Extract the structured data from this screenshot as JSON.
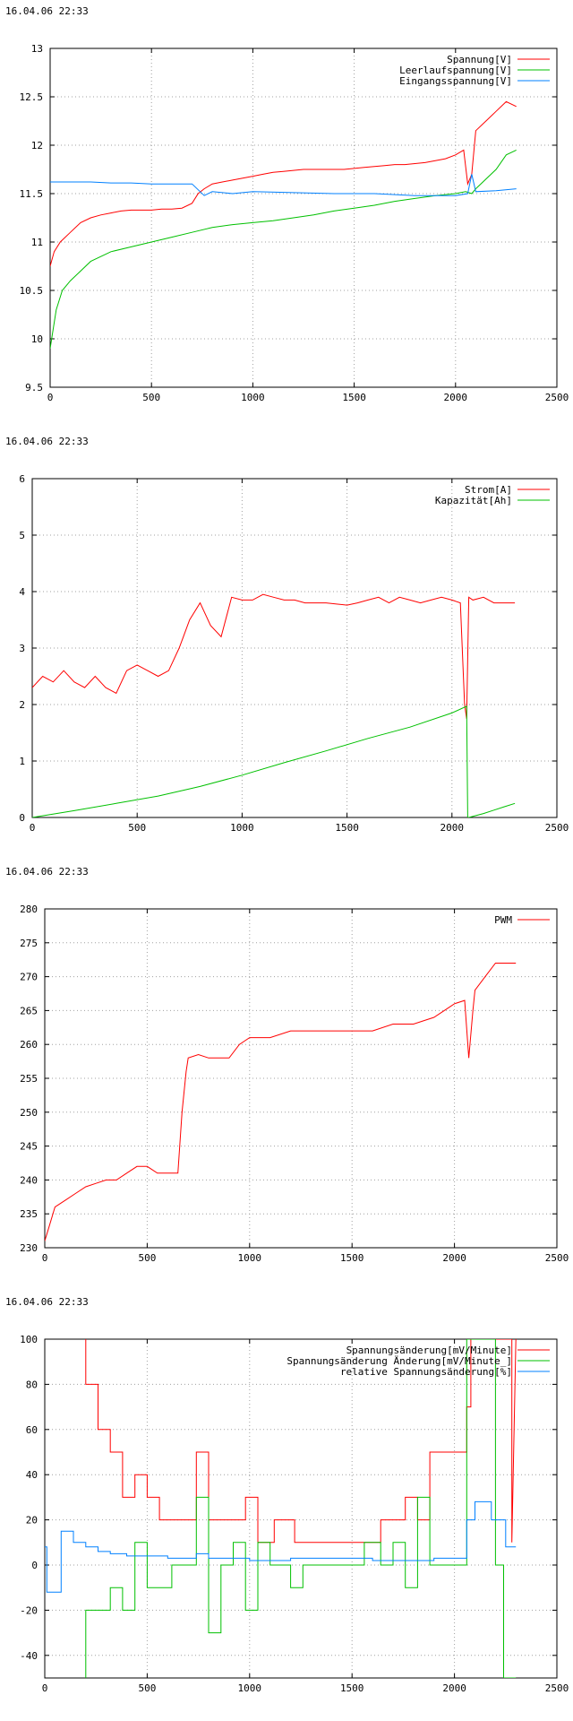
{
  "chart_data": [
    {
      "type": "line",
      "timestamp": "16.04.06 22:33",
      "xlim": [
        0,
        2500
      ],
      "ylim": [
        9.5,
        13
      ],
      "xticks": [
        0,
        500,
        1000,
        1500,
        2000,
        2500
      ],
      "yticks": [
        9.5,
        10,
        10.5,
        11,
        11.5,
        12,
        12.5,
        13
      ],
      "grid": true,
      "legend": "top-right",
      "series": [
        {
          "name": "Spannung[V]",
          "color": "#ff0000",
          "x": [
            0,
            20,
            50,
            100,
            150,
            200,
            250,
            300,
            350,
            400,
            450,
            500,
            550,
            600,
            650,
            700,
            730,
            760,
            800,
            850,
            900,
            950,
            1000,
            1050,
            1100,
            1150,
            1200,
            1250,
            1300,
            1350,
            1400,
            1450,
            1500,
            1550,
            1600,
            1650,
            1700,
            1750,
            1800,
            1850,
            1900,
            1950,
            2000,
            2040,
            2060,
            2080,
            2100,
            2150,
            2200,
            2250,
            2300
          ],
          "y": [
            10.75,
            10.9,
            11.0,
            11.1,
            11.2,
            11.25,
            11.28,
            11.3,
            11.32,
            11.33,
            11.33,
            11.33,
            11.34,
            11.34,
            11.35,
            11.4,
            11.5,
            11.55,
            11.6,
            11.62,
            11.64,
            11.66,
            11.68,
            11.7,
            11.72,
            11.73,
            11.74,
            11.75,
            11.75,
            11.75,
            11.75,
            11.75,
            11.76,
            11.77,
            11.78,
            11.79,
            11.8,
            11.8,
            11.81,
            11.82,
            11.84,
            11.86,
            11.9,
            11.95,
            11.6,
            11.7,
            12.15,
            12.25,
            12.35,
            12.45,
            12.4
          ]
        },
        {
          "name": "Leerlaufspannung[V]",
          "color": "#00c000",
          "x": [
            0,
            30,
            60,
            100,
            150,
            200,
            300,
            400,
            500,
            600,
            700,
            800,
            900,
            1000,
            1100,
            1200,
            1300,
            1400,
            1500,
            1600,
            1700,
            1800,
            1900,
            2000,
            2050,
            2080,
            2100,
            2150,
            2200,
            2250,
            2300
          ],
          "y": [
            9.9,
            10.3,
            10.5,
            10.6,
            10.7,
            10.8,
            10.9,
            10.95,
            11.0,
            11.05,
            11.1,
            11.15,
            11.18,
            11.2,
            11.22,
            11.25,
            11.28,
            11.32,
            11.35,
            11.38,
            11.42,
            11.45,
            11.48,
            11.5,
            11.52,
            11.5,
            11.55,
            11.65,
            11.75,
            11.9,
            11.95
          ]
        },
        {
          "name": "Eingangsspannung[V]",
          "color": "#0080ff",
          "x": [
            0,
            100,
            200,
            300,
            400,
            500,
            600,
            700,
            760,
            800,
            900,
            1000,
            1200,
            1400,
            1600,
            1800,
            2000,
            2060,
            2080,
            2100,
            2200,
            2300
          ],
          "y": [
            11.62,
            11.62,
            11.62,
            11.61,
            11.61,
            11.6,
            11.6,
            11.6,
            11.48,
            11.52,
            11.5,
            11.52,
            11.51,
            11.5,
            11.5,
            11.48,
            11.48,
            11.5,
            11.7,
            11.52,
            11.53,
            11.55
          ]
        }
      ]
    },
    {
      "type": "line",
      "timestamp": "16.04.06 22:33",
      "xlim": [
        0,
        2500
      ],
      "ylim": [
        0,
        6
      ],
      "xticks": [
        0,
        500,
        1000,
        1500,
        2000,
        2500
      ],
      "yticks": [
        0,
        1,
        2,
        3,
        4,
        5,
        6
      ],
      "grid": true,
      "legend": "top-right",
      "series": [
        {
          "name": "Strom[A]",
          "color": "#ff0000",
          "x": [
            0,
            50,
            100,
            150,
            200,
            250,
            300,
            350,
            400,
            450,
            500,
            550,
            600,
            650,
            700,
            720,
            750,
            800,
            850,
            900,
            950,
            1000,
            1050,
            1100,
            1150,
            1200,
            1250,
            1300,
            1350,
            1400,
            1450,
            1500,
            1550,
            1600,
            1650,
            1700,
            1750,
            1800,
            1850,
            1900,
            1950,
            2000,
            2040,
            2060,
            2070,
            2080,
            2100,
            2150,
            2200,
            2250,
            2300
          ],
          "y": [
            2.3,
            2.5,
            2.4,
            2.6,
            2.4,
            2.3,
            2.5,
            2.3,
            2.2,
            2.6,
            2.7,
            2.6,
            2.5,
            2.6,
            3.0,
            3.2,
            3.5,
            3.8,
            3.4,
            3.2,
            3.9,
            3.85,
            3.85,
            3.95,
            3.9,
            3.85,
            3.85,
            3.8,
            3.8,
            3.8,
            3.78,
            3.76,
            3.8,
            3.85,
            3.9,
            3.8,
            3.9,
            3.85,
            3.8,
            3.85,
            3.9,
            3.85,
            3.8,
            2.0,
            1.75,
            3.9,
            3.85,
            3.9,
            3.8,
            3.8,
            3.8
          ]
        },
        {
          "name": "Kapazität[Ah]",
          "color": "#00c000",
          "x": [
            0,
            200,
            400,
            600,
            800,
            1000,
            1200,
            1400,
            1600,
            1800,
            2000,
            2070,
            2075,
            2080,
            2150,
            2200,
            2250,
            2300
          ],
          "y": [
            0,
            0.12,
            0.25,
            0.38,
            0.55,
            0.75,
            0.97,
            1.18,
            1.4,
            1.6,
            1.85,
            1.97,
            0.0,
            0.0,
            0.07,
            0.13,
            0.19,
            0.25
          ]
        }
      ]
    },
    {
      "type": "line",
      "timestamp": "16.04.06 22:33",
      "xlim": [
        0,
        2500
      ],
      "ylim": [
        230,
        280
      ],
      "xticks": [
        0,
        500,
        1000,
        1500,
        2000,
        2500
      ],
      "yticks": [
        230,
        235,
        240,
        245,
        250,
        255,
        260,
        265,
        270,
        275,
        280
      ],
      "grid": true,
      "legend": "top-right",
      "series": [
        {
          "name": "PWM",
          "color": "#ff0000",
          "x": [
            0,
            20,
            50,
            100,
            150,
            200,
            250,
            300,
            350,
            400,
            450,
            500,
            550,
            600,
            650,
            670,
            690,
            700,
            750,
            800,
            850,
            900,
            950,
            1000,
            1100,
            1200,
            1300,
            1400,
            1500,
            1600,
            1700,
            1800,
            1900,
            1950,
            2000,
            2050,
            2070,
            2090,
            2100,
            2150,
            2200,
            2250,
            2300
          ],
          "y": [
            231,
            233,
            236,
            237,
            238,
            239,
            239.5,
            240,
            240,
            241,
            242,
            242,
            241,
            241,
            241,
            250,
            256,
            258,
            258.5,
            258,
            258,
            258,
            260,
            261,
            261,
            262,
            262,
            262,
            262,
            262,
            263,
            263,
            264,
            265,
            266,
            266.5,
            258,
            265,
            268,
            270,
            272,
            272,
            272
          ]
        }
      ]
    },
    {
      "type": "line",
      "timestamp": "16.04.06 22:33",
      "xlim": [
        0,
        2500
      ],
      "ylim": [
        -50,
        100
      ],
      "xticks": [
        0,
        500,
        1000,
        1500,
        2000,
        2500
      ],
      "yticks": [
        -40,
        -20,
        0,
        20,
        40,
        60,
        80,
        100
      ],
      "grid": true,
      "legend": "top-right",
      "series": [
        {
          "name": "Spannungsänderung[mV/Minute]",
          "color": "#ff0000",
          "x": [
            200,
            200,
            260,
            260,
            320,
            320,
            380,
            380,
            440,
            440,
            500,
            500,
            560,
            560,
            620,
            620,
            740,
            740,
            800,
            800,
            860,
            860,
            980,
            980,
            1040,
            1040,
            1120,
            1120,
            1220,
            1220,
            1300,
            1300,
            1400,
            1400,
            1500,
            1500,
            1560,
            1560,
            1640,
            1640,
            1700,
            1700,
            1760,
            1760,
            1820,
            1820,
            1880,
            1880,
            1940,
            1940,
            2000,
            2000,
            2060,
            2060,
            2080,
            2080,
            2100,
            2100,
            2280,
            2280,
            2300
          ],
          "y": [
            100,
            80,
            80,
            60,
            60,
            50,
            50,
            30,
            30,
            40,
            40,
            30,
            30,
            20,
            20,
            20,
            20,
            50,
            50,
            20,
            20,
            20,
            20,
            30,
            30,
            10,
            10,
            20,
            20,
            10,
            10,
            10,
            10,
            10,
            10,
            10,
            10,
            10,
            10,
            20,
            20,
            20,
            20,
            30,
            30,
            20,
            20,
            50,
            50,
            50,
            50,
            50,
            50,
            70,
            70,
            100,
            100,
            100,
            100,
            10,
            100
          ]
        },
        {
          "name": "Spannungsänderung Änderung[mV/Minute_]",
          "color": "#00c000",
          "x": [
            200,
            200,
            300,
            300,
            320,
            320,
            380,
            380,
            440,
            440,
            480,
            480,
            500,
            500,
            560,
            560,
            620,
            620,
            740,
            740,
            800,
            800,
            860,
            860,
            920,
            920,
            980,
            980,
            1040,
            1040,
            1100,
            1100,
            1200,
            1200,
            1260,
            1260,
            1400,
            1400,
            1500,
            1500,
            1560,
            1560,
            1640,
            1640,
            1700,
            1700,
            1760,
            1760,
            1820,
            1820,
            1880,
            1880,
            1940,
            1940,
            2000,
            2000,
            2060,
            2060,
            2080,
            2080,
            2200,
            2200,
            2240,
            2240,
            2300
          ],
          "y": [
            -50,
            -20,
            -20,
            -20,
            -20,
            -10,
            -10,
            -20,
            -20,
            10,
            10,
            10,
            10,
            -10,
            -10,
            -10,
            -10,
            0,
            0,
            30,
            30,
            -30,
            -30,
            0,
            0,
            10,
            10,
            -20,
            -20,
            10,
            10,
            0,
            0,
            -10,
            -10,
            0,
            0,
            0,
            0,
            0,
            0,
            10,
            10,
            0,
            0,
            10,
            10,
            -10,
            -10,
            30,
            30,
            0,
            0,
            0,
            0,
            0,
            0,
            100,
            100,
            100,
            100,
            0,
            0,
            -50,
            -50
          ]
        },
        {
          "name": "relative Spannungsänderung[%]",
          "color": "#0080ff",
          "x": [
            0,
            10,
            10,
            80,
            80,
            140,
            140,
            200,
            200,
            260,
            260,
            320,
            320,
            400,
            400,
            600,
            600,
            740,
            740,
            800,
            800,
            1000,
            1000,
            1200,
            1200,
            1600,
            1600,
            1900,
            1900,
            2060,
            2060,
            2100,
            2100,
            2180,
            2180,
            2250,
            2250,
            2300
          ],
          "y": [
            8,
            8,
            -12,
            -12,
            15,
            15,
            10,
            10,
            8,
            8,
            6,
            6,
            5,
            5,
            4,
            4,
            3,
            3,
            5,
            5,
            3,
            3,
            2,
            2,
            3,
            3,
            2,
            2,
            3,
            3,
            20,
            20,
            28,
            28,
            20,
            20,
            8,
            8
          ]
        }
      ]
    }
  ]
}
